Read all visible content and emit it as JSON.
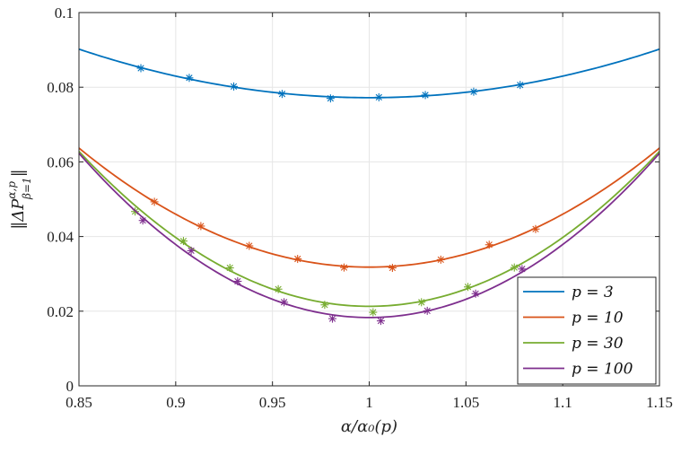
{
  "chart_data": {
    "type": "line",
    "title": "",
    "xlabel": "α/α₀(p)",
    "ylabel": "‖ΔP^{α,p}_{β=1}‖",
    "ylabel_main": "‖ΔP",
    "ylabel_sup": "α,p",
    "ylabel_sub": "β=1",
    "ylabel_end": "‖",
    "xlim": [
      0.85,
      1.15
    ],
    "ylim": [
      0,
      0.1
    ],
    "xticks": [
      0.85,
      0.9,
      0.95,
      1,
      1.05,
      1.1,
      1.15
    ],
    "xtick_labels": [
      "0.85",
      "0.9",
      "0.95",
      "1",
      "1.05",
      "1.1",
      "1.15"
    ],
    "yticks": [
      0,
      0.02,
      0.04,
      0.06,
      0.08,
      0.1
    ],
    "ytick_labels": [
      "0",
      "0.02",
      "0.04",
      "0.06",
      "0.08",
      "0.1"
    ],
    "grid": true,
    "legend_position": "bottom-right",
    "series": [
      {
        "name": "p = 3",
        "legend_label": "p = 3",
        "color": "#0072BD",
        "curve": {
          "min_x": 1.0,
          "min_y": 0.0772,
          "edge_y": 0.0902
        },
        "markers": [
          {
            "x": 0.882,
            "y": 0.0851
          },
          {
            "x": 0.907,
            "y": 0.0825
          },
          {
            "x": 0.93,
            "y": 0.0802
          },
          {
            "x": 0.955,
            "y": 0.0782
          },
          {
            "x": 0.98,
            "y": 0.077
          },
          {
            "x": 1.005,
            "y": 0.0773
          },
          {
            "x": 1.029,
            "y": 0.0779
          },
          {
            "x": 1.054,
            "y": 0.0788
          },
          {
            "x": 1.078,
            "y": 0.0806
          }
        ]
      },
      {
        "name": "p = 10",
        "legend_label": "p = 10",
        "color": "#D95319",
        "curve": {
          "min_x": 1.0,
          "min_y": 0.0318,
          "edge_y": 0.0637
        },
        "markers": [
          {
            "x": 0.889,
            "y": 0.0493
          },
          {
            "x": 0.913,
            "y": 0.0428
          },
          {
            "x": 0.938,
            "y": 0.0375
          },
          {
            "x": 0.963,
            "y": 0.034
          },
          {
            "x": 0.987,
            "y": 0.0317
          },
          {
            "x": 1.012,
            "y": 0.0316
          },
          {
            "x": 1.037,
            "y": 0.0338
          },
          {
            "x": 1.062,
            "y": 0.0378
          },
          {
            "x": 1.086,
            "y": 0.042
          }
        ]
      },
      {
        "name": "p = 30",
        "legend_label": "p = 30",
        "color": "#77AC30",
        "curve": {
          "min_x": 1.0,
          "min_y": 0.0213,
          "edge_y": 0.0628
        },
        "markers": [
          {
            "x": 0.879,
            "y": 0.0467
          },
          {
            "x": 0.904,
            "y": 0.0388
          },
          {
            "x": 0.928,
            "y": 0.0316
          },
          {
            "x": 0.953,
            "y": 0.0259
          },
          {
            "x": 0.977,
            "y": 0.0217
          },
          {
            "x": 1.002,
            "y": 0.0197
          },
          {
            "x": 1.027,
            "y": 0.0224
          },
          {
            "x": 1.051,
            "y": 0.0265
          },
          {
            "x": 1.075,
            "y": 0.0317
          }
        ]
      },
      {
        "name": "p = 100",
        "legend_label": "p = 100",
        "color": "#7E2F8E",
        "curve": {
          "min_x": 1.0,
          "min_y": 0.0183,
          "edge_y": 0.0623
        },
        "markers": [
          {
            "x": 0.883,
            "y": 0.0443
          },
          {
            "x": 0.908,
            "y": 0.0362
          },
          {
            "x": 0.932,
            "y": 0.028
          },
          {
            "x": 0.956,
            "y": 0.0224
          },
          {
            "x": 0.981,
            "y": 0.018
          },
          {
            "x": 1.006,
            "y": 0.0174
          },
          {
            "x": 1.03,
            "y": 0.0201
          },
          {
            "x": 1.055,
            "y": 0.0247
          },
          {
            "x": 1.079,
            "y": 0.0313
          }
        ]
      }
    ]
  }
}
